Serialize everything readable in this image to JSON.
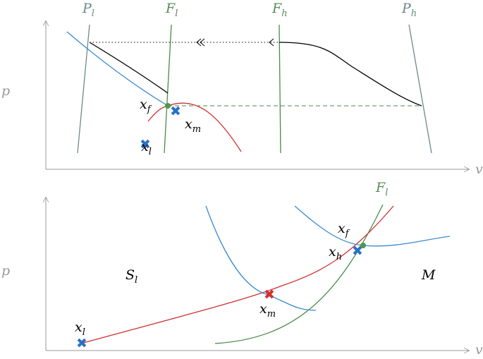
{
  "top_panel": {
    "axis_y": "p",
    "axis_x": "v",
    "lines": [
      {
        "base": "P",
        "sub": "l"
      },
      {
        "base": "F",
        "sub": "l"
      },
      {
        "base": "F",
        "sub": "h"
      },
      {
        "base": "P",
        "sub": "h"
      }
    ],
    "points": [
      {
        "base": "x",
        "sub": "f"
      },
      {
        "base": "x",
        "sub": "m"
      },
      {
        "base": "x",
        "sub": "l"
      }
    ]
  },
  "bottom_panel": {
    "axis_y": "p",
    "axis_x": "v",
    "curve": {
      "base": "F",
      "sub": "l"
    },
    "regions": [
      {
        "base": "S",
        "sub": "l"
      },
      {
        "base": "M"
      }
    ],
    "points": [
      {
        "base": "x",
        "sub": "l"
      },
      {
        "base": "x",
        "sub": "m"
      },
      {
        "base": "x",
        "sub": "h"
      },
      {
        "base": "x",
        "sub": "f"
      }
    ]
  }
}
